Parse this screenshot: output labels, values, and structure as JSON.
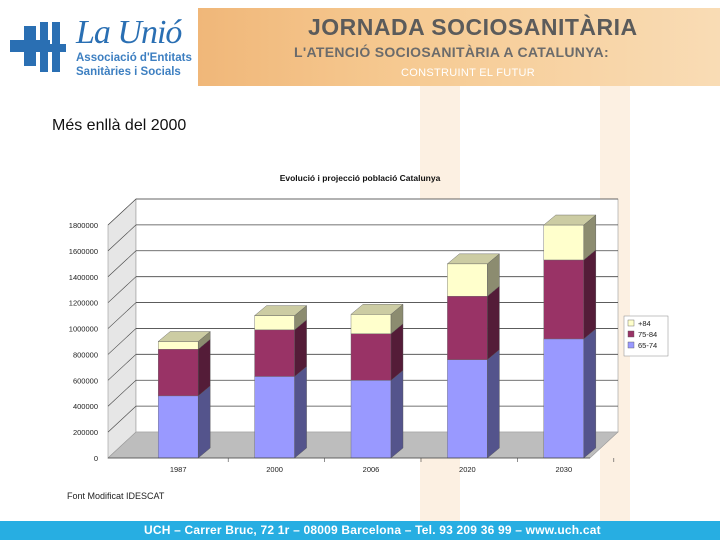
{
  "logo": {
    "name": "La Unió",
    "line1": "Associació d'Entitats",
    "line2": "Sanitàries i Socials"
  },
  "header": {
    "title": "JORNADA SOCIOSANITÀRIA",
    "subtitle": "L'ATENCIÓ SOCIOSANITÀRIA A CATALUNYA:",
    "subtitle2": "CONSTRUINT EL FUTUR"
  },
  "slide": {
    "title": "Més enllà del 2000"
  },
  "source_note": "Font Modificat IDESCAT",
  "footer": {
    "text": "UCH – Carrer Bruc, 72 1r – 08009 Barcelona – Tel. 93 209 36 99 – www.uch.cat"
  },
  "colors": {
    "brand_blue": "#2a6fb3",
    "footer_bg": "#27aee2",
    "header_orange": "#f4bf86"
  },
  "chart_data": {
    "type": "bar",
    "stacked": true,
    "title": "Evolució i projecció població Catalunya",
    "categories": [
      "1987",
      "2000",
      "2006",
      "2020",
      "2030"
    ],
    "series": [
      {
        "name": "65-74",
        "color": "#9999ff",
        "values": [
          480000,
          630000,
          600000,
          760000,
          920000
        ]
      },
      {
        "name": "75-84",
        "color": "#993366",
        "values": [
          360000,
          360000,
          360000,
          490000,
          610000
        ]
      },
      {
        "name": "+84",
        "color": "#ffffcc",
        "values": [
          60000,
          110000,
          150000,
          250000,
          270000
        ]
      }
    ],
    "yticks": [
      "0",
      "200000",
      "400000",
      "600000",
      "800000",
      "1000000",
      "1200000",
      "1400000",
      "1600000",
      "1800000"
    ],
    "ylim": [
      0,
      1800000
    ],
    "legend_position": "right",
    "gridlines": true
  }
}
